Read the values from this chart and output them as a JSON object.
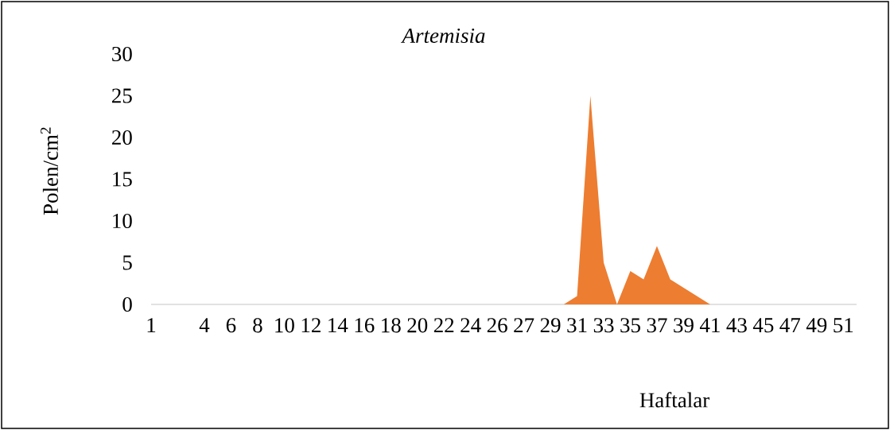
{
  "chart_data": {
    "type": "area",
    "title": "Artemisia",
    "ylabel": "Polen/cm$^{2}$",
    "xlabel": "Haftalar",
    "categories": [
      "1",
      null,
      null,
      null,
      "4",
      null,
      "6",
      null,
      "8",
      null,
      "10",
      null,
      "12",
      null,
      "14",
      null,
      "16",
      null,
      "18",
      null,
      "20",
      null,
      "22",
      null,
      "24",
      null,
      "26",
      null,
      "27",
      null,
      "29",
      null,
      "31",
      null,
      "33",
      null,
      "35",
      null,
      "37",
      null,
      "39",
      null,
      "41",
      null,
      "43",
      null,
      "45",
      null,
      "47",
      null,
      "49",
      null,
      "51",
      null
    ],
    "values": [
      0,
      0,
      0,
      0,
      0,
      0,
      0,
      0,
      0,
      0,
      0,
      0,
      0,
      0,
      0,
      0,
      0,
      0,
      0,
      0,
      0,
      0,
      0,
      0,
      0,
      0,
      0,
      0,
      0,
      0,
      0,
      0,
      1,
      25,
      5,
      0,
      4,
      3,
      7,
      3,
      2,
      1,
      0,
      0,
      0,
      0,
      0,
      0,
      0,
      0,
      0,
      0,
      0,
      0
    ],
    "color": "#ed7d31",
    "ylim": [
      0,
      30
    ],
    "yticks": [
      0,
      5,
      10,
      15,
      20,
      25,
      30
    ]
  }
}
